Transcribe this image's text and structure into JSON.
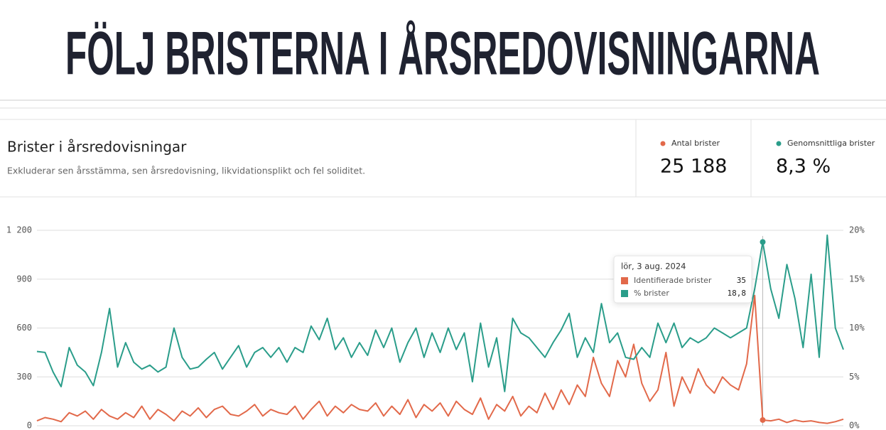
{
  "header": {
    "title": "FÖLJ BRISTERNA I ÅRSREDOVISNINGARNA"
  },
  "card": {
    "title": "Brister i årsredovisningar",
    "subtitle": "Exkluderar sen årsstämma, sen årsredovisning, likvidationsplikt och fel soliditet.",
    "stats": [
      {
        "label": "Antal brister",
        "value": "25 188",
        "color": "#e2694a"
      },
      {
        "label": "Genomsnittliga brister",
        "value": "8,3 %",
        "color": "#2a9d8a"
      }
    ]
  },
  "chart_data": {
    "type": "line",
    "grid": true,
    "categories": [
      null,
      null,
      null,
      null,
      null,
      null,
      null,
      null,
      null,
      null,
      null,
      null,
      null,
      null,
      null,
      null,
      null,
      null,
      null,
      null,
      null,
      null,
      null,
      null,
      null,
      null,
      null,
      null,
      null,
      null,
      null,
      null,
      null,
      null,
      null,
      null,
      null,
      null,
      null,
      null,
      null,
      null,
      null,
      null,
      null,
      null,
      null,
      null,
      null,
      null,
      null,
      null,
      null,
      null,
      null,
      null,
      null,
      null,
      null,
      null,
      null,
      null,
      null,
      null,
      null,
      null,
      null,
      null,
      null,
      null,
      null,
      null,
      null,
      null,
      null,
      null,
      null,
      null,
      null,
      null,
      null,
      null,
      null,
      null,
      null,
      null,
      null,
      null,
      null,
      null,
      "lör, 3 aug. 2024",
      null,
      null,
      null,
      null,
      null,
      null,
      null,
      null,
      null,
      null
    ],
    "ylim": [
      0,
      1200
    ],
    "yticks": [
      0,
      300,
      600,
      900,
      {
        "value": 1200,
        "label": "1 200"
      }
    ],
    "y2lim": [
      0,
      20
    ],
    "y2ticks": [
      {
        "value": 0,
        "label": "0%"
      },
      {
        "value": 5,
        "label": "5%"
      },
      {
        "value": 10,
        "label": "10%"
      },
      {
        "value": 15,
        "label": "15%"
      },
      {
        "value": 20,
        "label": "20%"
      }
    ],
    "series": [
      {
        "name": "Identifierade brister",
        "color": "#e2694a",
        "values": [
          30,
          50,
          40,
          25,
          80,
          60,
          90,
          40,
          100,
          60,
          40,
          80,
          50,
          120,
          40,
          100,
          70,
          30,
          90,
          60,
          110,
          50,
          100,
          120,
          70,
          60,
          90,
          130,
          60,
          100,
          80,
          70,
          120,
          40,
          100,
          150,
          60,
          120,
          80,
          130,
          100,
          90,
          140,
          60,
          120,
          70,
          160,
          50,
          130,
          90,
          140,
          60,
          150,
          100,
          70,
          170,
          40,
          130,
          90,
          180,
          60,
          120,
          80,
          200,
          100,
          220,
          130,
          250,
          180,
          420,
          260,
          180,
          400,
          300,
          500,
          260,
          150,
          220,
          450,
          120,
          300,
          200,
          350,
          250,
          200,
          300,
          250,
          220,
          380,
          800,
          35,
          30,
          40,
          20,
          35,
          25,
          30,
          20,
          15,
          25,
          40
        ],
        "value_labels": [
          null,
          null,
          null,
          null,
          null,
          null,
          null,
          null,
          null,
          null,
          null,
          null,
          null,
          null,
          null,
          null,
          null,
          null,
          null,
          null,
          null,
          null,
          null,
          null,
          null,
          null,
          null,
          null,
          null,
          null,
          null,
          null,
          null,
          null,
          null,
          null,
          null,
          null,
          null,
          null,
          null,
          null,
          null,
          null,
          null,
          null,
          null,
          null,
          null,
          null,
          null,
          null,
          null,
          null,
          null,
          null,
          null,
          null,
          null,
          null,
          null,
          null,
          null,
          null,
          null,
          null,
          null,
          null,
          null,
          null,
          null,
          null,
          null,
          null,
          null,
          null,
          null,
          null,
          null,
          null,
          null,
          null,
          null,
          null,
          null,
          null,
          null,
          null,
          null,
          null,
          "35",
          null,
          null,
          null,
          null,
          null,
          null,
          null,
          null,
          null,
          null
        ]
      },
      {
        "name": "% brister",
        "color": "#2a9d8a",
        "axis": "y2",
        "values": [
          7.6,
          7.5,
          5.5,
          4.0,
          8.0,
          6.2,
          5.5,
          4.1,
          7.5,
          12.0,
          6.0,
          8.5,
          6.5,
          5.8,
          6.2,
          5.5,
          6.0,
          10.0,
          7.0,
          5.8,
          6.0,
          6.8,
          7.5,
          5.8,
          7.0,
          8.2,
          6.0,
          7.5,
          8.0,
          7.0,
          8.0,
          6.5,
          8.0,
          7.5,
          10.2,
          8.8,
          11.0,
          7.8,
          9.0,
          7.0,
          8.5,
          7.2,
          9.8,
          8.0,
          10.0,
          6.5,
          8.5,
          10.0,
          7.0,
          9.5,
          7.5,
          10.0,
          7.8,
          9.5,
          4.5,
          10.5,
          6.0,
          9.0,
          3.5,
          11.0,
          9.5,
          9.0,
          8.0,
          7.0,
          8.5,
          9.8,
          11.5,
          7.0,
          9.0,
          7.5,
          12.5,
          8.5,
          9.5,
          7.0,
          6.8,
          8.0,
          7.0,
          10.5,
          8.5,
          10.5,
          8.0,
          9.0,
          8.5,
          9.0,
          10.0,
          9.5,
          9.0,
          9.5,
          10.0,
          14.0,
          18.8,
          14.0,
          11.0,
          16.5,
          13.0,
          8.0,
          15.5,
          7.0,
          19.5,
          10.0,
          7.8
        ],
        "value_labels": [
          null,
          null,
          null,
          null,
          null,
          null,
          null,
          null,
          null,
          null,
          null,
          null,
          null,
          null,
          null,
          null,
          null,
          null,
          null,
          null,
          null,
          null,
          null,
          null,
          null,
          null,
          null,
          null,
          null,
          null,
          null,
          null,
          null,
          null,
          null,
          null,
          null,
          null,
          null,
          null,
          null,
          null,
          null,
          null,
          null,
          null,
          null,
          null,
          null,
          null,
          null,
          null,
          null,
          null,
          null,
          null,
          null,
          null,
          null,
          null,
          null,
          null,
          null,
          null,
          null,
          null,
          null,
          null,
          null,
          null,
          null,
          null,
          null,
          null,
          null,
          null,
          null,
          null,
          null,
          null,
          null,
          null,
          null,
          null,
          null,
          null,
          null,
          null,
          null,
          null,
          "18,8",
          null,
          null,
          null,
          null,
          null,
          null,
          null,
          null,
          null,
          null
        ]
      }
    ]
  }
}
